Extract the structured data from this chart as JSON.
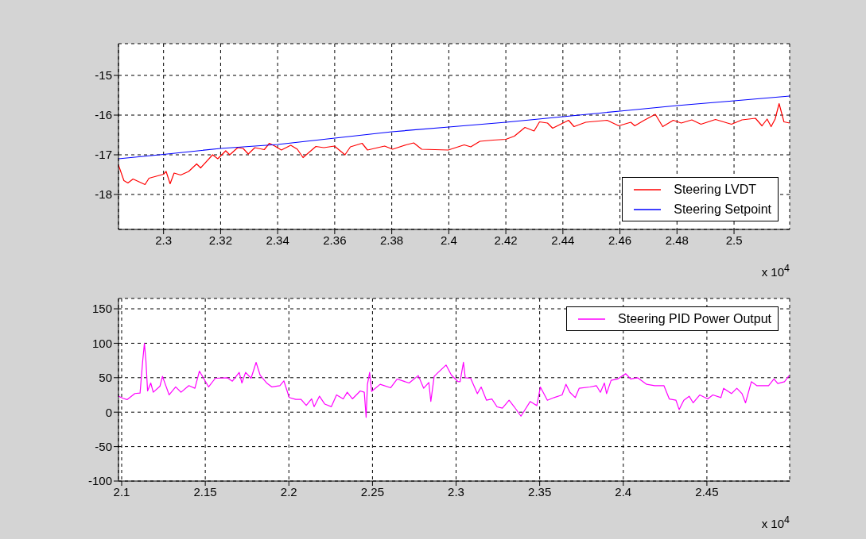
{
  "chart_data": [
    {
      "type": "line",
      "annotations": [
        "x 10$^{4}$"
      ],
      "xlim": [
        2.2842,
        2.5195
      ],
      "xticks": [
        2.3,
        2.32,
        2.34,
        2.36,
        2.38,
        2.4,
        2.42,
        2.44,
        2.46,
        2.48,
        2.5
      ],
      "ylim": [
        -18.88,
        -14.2
      ],
      "yticks": [
        -18,
        -17,
        -16,
        -15
      ],
      "grid": true,
      "legend": "bottom right",
      "series": [
        {
          "name": "Steering LVDT",
          "color": "#ff0000",
          "x": [
            2.2842,
            2.2861,
            2.2875,
            2.2893,
            2.2935,
            2.2949,
            2.3,
            2.3009,
            2.3023,
            2.3037,
            2.306,
            2.3088,
            2.3116,
            2.313,
            2.3172,
            2.319,
            2.3218,
            2.3232,
            2.326,
            2.3279,
            2.3297,
            2.332,
            2.3353,
            2.3371,
            2.339,
            2.3413,
            2.3446,
            2.3469,
            2.3489,
            2.3534,
            2.3562,
            2.3599,
            2.3636,
            2.3655,
            2.3696,
            2.3715,
            2.3775,
            2.3803,
            2.385,
            2.3877,
            2.3905,
            2.3998,
            2.4054,
            2.4077,
            2.4109,
            2.4155,
            2.42,
            2.423,
            2.4267,
            2.4299,
            2.4318,
            2.4346,
            2.4364,
            2.442,
            2.4439,
            2.448,
            2.4555,
            2.4596,
            2.4638,
            2.4652,
            2.4685,
            2.4724,
            2.475,
            2.4787,
            2.4815,
            2.4852,
            2.4884,
            2.4935,
            2.4991,
            2.5028,
            2.5075,
            2.5098,
            2.5116,
            2.513,
            2.5144,
            2.5158,
            2.5175,
            2.5195
          ],
          "values": [
            -17.26,
            -17.65,
            -17.71,
            -17.61,
            -17.75,
            -17.59,
            -17.49,
            -17.42,
            -17.73,
            -17.46,
            -17.51,
            -17.42,
            -17.23,
            -17.33,
            -17.0,
            -17.1,
            -16.9,
            -17.0,
            -16.82,
            -16.84,
            -16.98,
            -16.82,
            -16.87,
            -16.71,
            -16.78,
            -16.88,
            -16.76,
            -16.86,
            -17.07,
            -16.79,
            -16.82,
            -16.78,
            -17.0,
            -16.8,
            -16.71,
            -16.88,
            -16.78,
            -16.86,
            -16.75,
            -16.7,
            -16.86,
            -16.88,
            -16.75,
            -16.8,
            -16.66,
            -16.63,
            -16.61,
            -16.53,
            -16.31,
            -16.4,
            -16.17,
            -16.2,
            -16.33,
            -16.13,
            -16.29,
            -16.18,
            -16.13,
            -16.27,
            -16.18,
            -16.27,
            -16.13,
            -15.98,
            -16.29,
            -16.13,
            -16.2,
            -16.12,
            -16.23,
            -16.11,
            -16.23,
            -16.12,
            -16.08,
            -16.27,
            -16.1,
            -16.29,
            -16.1,
            -15.71,
            -16.17,
            -16.2
          ]
        },
        {
          "name": "Steering Setpoint",
          "color": "#0000ff",
          "x": [
            2.2842,
            2.3,
            2.32,
            2.34,
            2.36,
            2.38,
            2.4,
            2.42,
            2.44,
            2.46,
            2.48,
            2.5,
            2.5195
          ],
          "values": [
            -17.1,
            -16.99,
            -16.84,
            -16.74,
            -16.58,
            -16.42,
            -16.3,
            -16.18,
            -16.04,
            -15.9,
            -15.76,
            -15.64,
            -15.52
          ]
        }
      ]
    },
    {
      "type": "line",
      "annotations": [
        "x 10$^{4}$"
      ],
      "xlim": [
        2.0981,
        2.4995
      ],
      "xticks": [
        2.1,
        2.15,
        2.2,
        2.25,
        2.3,
        2.35,
        2.4,
        2.45
      ],
      "ylim": [
        -100,
        165
      ],
      "yticks": [
        -100,
        -50,
        0,
        50,
        100,
        150
      ],
      "grid": true,
      "legend": "top right",
      "series": [
        {
          "name": "Steering PID Power Output",
          "color": "#ff00ff",
          "x": [
            2.0981,
            2.1008,
            2.1032,
            2.1079,
            2.111,
            2.1126,
            2.1136,
            2.1145,
            2.1155,
            2.1174,
            2.1189,
            2.1229,
            2.1244,
            2.1284,
            2.1323,
            2.1355,
            2.1402,
            2.1438,
            2.1465,
            2.152,
            2.156,
            2.1631,
            2.1662,
            2.1703,
            2.1719,
            2.1741,
            2.1774,
            2.1804,
            2.1828,
            2.1867,
            2.1899,
            2.1946,
            2.197,
            2.2002,
            2.2041,
            2.2073,
            2.2104,
            2.2136,
            2.2151,
            2.2183,
            2.2215,
            2.2254,
            2.2285,
            2.2325,
            2.2349,
            2.238,
            2.2427,
            2.2451,
            2.2462,
            2.247,
            2.2483,
            2.2495,
            2.2546,
            2.2609,
            2.2648,
            2.2719,
            2.2774,
            2.2806,
            2.2837,
            2.2849,
            2.2869,
            2.2893,
            2.294,
            2.2972,
            2.3011,
            2.3024,
            2.3044,
            2.3055,
            2.3087,
            2.3127,
            2.315,
            2.3182,
            2.3214,
            2.3245,
            2.3277,
            2.3317,
            2.3348,
            2.3388,
            2.3443,
            2.3483,
            2.3504,
            2.3546,
            2.3586,
            2.3634,
            2.3657,
            2.3681,
            2.3713,
            2.3736,
            2.38,
            2.3839,
            2.3863,
            2.3887,
            2.39,
            2.3927,
            2.3966,
            2.4014,
            2.4045,
            2.4085,
            2.414,
            2.4188,
            2.4243,
            2.4275,
            2.4315,
            2.4334,
            2.4362,
            2.4394,
            2.4418,
            2.4457,
            2.4505,
            2.4536,
            2.4584,
            2.46,
            2.4647,
            2.4679,
            2.471,
            2.4731,
            2.4766,
            2.4798,
            2.4869,
            2.4901,
            2.4924,
            2.4964,
            2.4992
          ],
          "values": [
            23.2,
            20.1,
            18.2,
            27.0,
            27.8,
            74.9,
            99.8,
            74.9,
            30.8,
            42.3,
            28.9,
            37.7,
            51.9,
            25.1,
            36.6,
            28.9,
            38.5,
            34.7,
            59.6,
            36.6,
            49.2,
            50,
            45.0,
            57.7,
            42.3,
            57.7,
            49.2,
            72.2,
            53.8,
            42.3,
            36.6,
            38.5,
            45.4,
            21.3,
            18.6,
            18.6,
            9.8,
            19.3,
            7.9,
            23.2,
            11.7,
            7.9,
            25.1,
            19.3,
            28.9,
            19.3,
            30.8,
            28.9,
            -7.5,
            40.4,
            57.7,
            30.1,
            40.4,
            35.4,
            48.1,
            42.3,
            53.1,
            34.7,
            43.1,
            15.5,
            51.9,
            57.7,
            68.4,
            53.8,
            44.3,
            44.2,
            72.3,
            50,
            49.2,
            26.9,
            36.5,
            17.3,
            19.2,
            7.7,
            5.8,
            17.3,
            7.7,
            -5.8,
            15.4,
            9.6,
            36.5,
            17.3,
            21.2,
            25,
            40.4,
            28.8,
            21.2,
            34.6,
            36.5,
            38.5,
            28.8,
            42.3,
            26.9,
            46.2,
            48.1,
            55.8,
            48.1,
            50,
            40.4,
            38.5,
            38.5,
            19.2,
            17.3,
            3.8,
            17.3,
            23.1,
            13.5,
            25,
            19.2,
            25,
            21.2,
            34.6,
            26.9,
            34.6,
            26.9,
            13.5,
            44.2,
            38.5,
            38.5,
            48.1,
            41.5,
            44.2,
            53.1
          ]
        }
      ]
    }
  ]
}
